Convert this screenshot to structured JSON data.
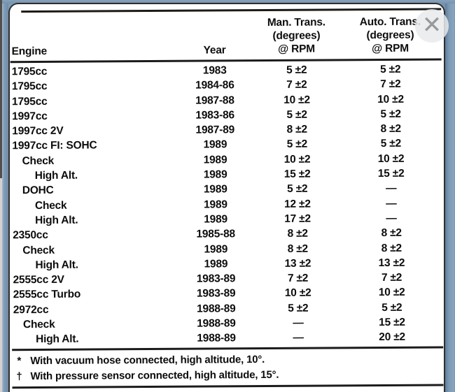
{
  "viewer": {
    "icons": {
      "close": "✕"
    }
  },
  "table": {
    "header": {
      "engine": "Engine",
      "year": "Year",
      "man": [
        "Man. Trans.",
        "(degrees)",
        "@ RPM"
      ],
      "auto": [
        "Auto. Trans.",
        "(degrees)",
        "@ RPM"
      ]
    },
    "rows": [
      {
        "engine": "1795cc",
        "indent": 0,
        "year": "1983",
        "man": "5 ±2",
        "auto": "5 ±2"
      },
      {
        "engine": "1795cc",
        "indent": 0,
        "year": "1984-86",
        "man": "7 ±2",
        "auto": "7 ±2"
      },
      {
        "engine": "1795cc",
        "indent": 0,
        "year": "1987-88",
        "man": "10 ±2",
        "auto": "10 ±2"
      },
      {
        "engine": "1997cc",
        "indent": 0,
        "year": "1983-86",
        "man": "5 ±2",
        "auto": "5 ±2"
      },
      {
        "engine": "1997cc 2V",
        "indent": 0,
        "year": "1987-89",
        "man": "8 ±2",
        "auto": "8 ±2"
      },
      {
        "engine": "1997cc FI: SOHC",
        "indent": 0,
        "year": "1989",
        "man": "5 ±2",
        "auto": "5 ±2"
      },
      {
        "engine": "Check",
        "indent": 1,
        "year": "1989",
        "man": "10 ±2",
        "auto": "10 ±2"
      },
      {
        "engine": "High Alt.",
        "indent": 2,
        "year": "1989",
        "man": "15 ±2",
        "auto": "15 ±2"
      },
      {
        "engine": "DOHC",
        "indent": 1,
        "year": "1989",
        "man": "5 ±2",
        "auto": "—"
      },
      {
        "engine": "Check",
        "indent": 2,
        "year": "1989",
        "man": "12 ±2",
        "auto": "—"
      },
      {
        "engine": "High Alt.",
        "indent": 2,
        "year": "1989",
        "man": "17 ±2",
        "auto": "—"
      },
      {
        "engine": "2350cc",
        "indent": 0,
        "year": "1985-88",
        "man": "8 ±2",
        "auto": "8 ±2"
      },
      {
        "engine": "Check",
        "indent": 1,
        "year": "1989",
        "man": "8 ±2",
        "auto": "8 ±2"
      },
      {
        "engine": "High Alt.",
        "indent": 2,
        "year": "1989",
        "man": "13 ±2",
        "auto": "13 ±2"
      },
      {
        "engine": "2555cc 2V",
        "indent": 0,
        "year": "1983-89",
        "man": "7 ±2",
        "auto": "7 ±2"
      },
      {
        "engine": "2555cc Turbo",
        "indent": 0,
        "year": "1983-89",
        "man": "10 ±2",
        "auto": "10 ±2"
      },
      {
        "engine": "2972cc",
        "indent": 0,
        "year": "1988-89",
        "man": "5 ±2",
        "auto": "5 ±2"
      },
      {
        "engine": "Check",
        "indent": 1,
        "year": "1988-89",
        "man": "—",
        "auto": "15 ±2"
      },
      {
        "engine": "High Alt.",
        "indent": 2,
        "year": "1988-89",
        "man": "—",
        "auto": "20 ±2"
      }
    ],
    "footnotes": [
      {
        "symbol": "*",
        "text": "With vacuum hose connected, high altitude, 10°."
      },
      {
        "symbol": "†",
        "text": "With pressure sensor connected, high altitude, 15°."
      }
    ]
  }
}
